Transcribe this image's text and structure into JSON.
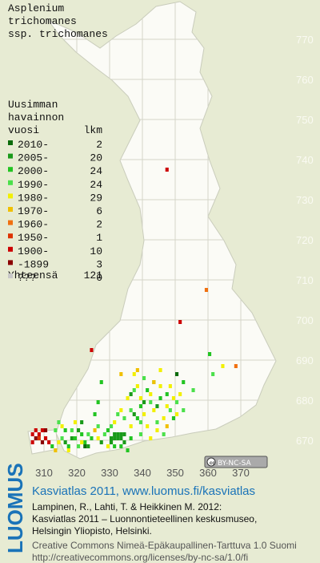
{
  "title": [
    "Asplenium",
    "trichomanes",
    "ssp. trichomanes"
  ],
  "legend": {
    "heading": [
      "Uusimman",
      "havainnon"
    ],
    "col_period": "vuosi",
    "col_count": "lkm",
    "rows": [
      {
        "label": "2010-",
        "count": 2,
        "color": "#0b6b0b",
        "squares": [
          [
            350,
            686
          ],
          [
            322,
            668
          ]
        ]
      },
      {
        "label": "2005-",
        "count": 20,
        "color": "#1a9a1a",
        "squares": [
          [
            330,
            670
          ],
          [
            331,
            670
          ],
          [
            332,
            670
          ],
          [
            333,
            670
          ],
          [
            332,
            671
          ],
          [
            333,
            671
          ],
          [
            334,
            671
          ],
          [
            331,
            671
          ],
          [
            330,
            669
          ],
          [
            334,
            669
          ],
          [
            320,
            672
          ],
          [
            321,
            674
          ],
          [
            316,
            669
          ],
          [
            318,
            670
          ],
          [
            340,
            679
          ],
          [
            337,
            676
          ],
          [
            336,
            681
          ],
          [
            344,
            678
          ],
          [
            327,
            669
          ],
          [
            323,
            668
          ]
        ]
      },
      {
        "label": "2000-",
        "count": 24,
        "color": "#22c422",
        "squares": [
          [
            316,
            672
          ],
          [
            317,
            668
          ],
          [
            319,
            670
          ],
          [
            321,
            671
          ],
          [
            322,
            669
          ],
          [
            324,
            670
          ],
          [
            325,
            676
          ],
          [
            326,
            679
          ],
          [
            327,
            684
          ],
          [
            329,
            672
          ],
          [
            331,
            668
          ],
          [
            333,
            668
          ],
          [
            335,
            667
          ],
          [
            336,
            670
          ],
          [
            338,
            675
          ],
          [
            339,
            678
          ],
          [
            341,
            682
          ],
          [
            343,
            684
          ],
          [
            345,
            680
          ],
          [
            347,
            681
          ],
          [
            349,
            675
          ],
          [
            352,
            684
          ],
          [
            360,
            691
          ],
          [
            312,
            668
          ]
        ]
      },
      {
        "label": "1990-",
        "count": 24,
        "color": "#4be04b",
        "squares": [
          [
            313,
            672
          ],
          [
            314,
            674
          ],
          [
            315,
            670
          ],
          [
            318,
            672
          ],
          [
            320,
            668
          ],
          [
            323,
            671
          ],
          [
            326,
            673
          ],
          [
            328,
            671
          ],
          [
            330,
            673
          ],
          [
            332,
            676
          ],
          [
            334,
            675
          ],
          [
            336,
            677
          ],
          [
            337,
            682
          ],
          [
            339,
            674
          ],
          [
            340,
            685
          ],
          [
            342,
            679
          ],
          [
            344,
            674
          ],
          [
            346,
            671
          ],
          [
            348,
            677
          ],
          [
            350,
            679
          ],
          [
            352,
            677
          ],
          [
            355,
            682
          ],
          [
            361,
            686
          ],
          [
            339,
            671
          ]
        ]
      },
      {
        "label": "1980-",
        "count": 29,
        "color": "#f2f000",
        "squares": [
          [
            314,
            669
          ],
          [
            315,
            673
          ],
          [
            317,
            667
          ],
          [
            319,
            674
          ],
          [
            321,
            669
          ],
          [
            326,
            670
          ],
          [
            329,
            668
          ],
          [
            331,
            674
          ],
          [
            333,
            677
          ],
          [
            335,
            680
          ],
          [
            337,
            686
          ],
          [
            338,
            683
          ],
          [
            339,
            680
          ],
          [
            340,
            676
          ],
          [
            341,
            673
          ],
          [
            342,
            681
          ],
          [
            343,
            677
          ],
          [
            344,
            672
          ],
          [
            345,
            683
          ],
          [
            346,
            675
          ],
          [
            347,
            678
          ],
          [
            348,
            683
          ],
          [
            349,
            680
          ],
          [
            350,
            676
          ],
          [
            351,
            681
          ],
          [
            345,
            687
          ],
          [
            364,
            688
          ],
          [
            336,
            673
          ],
          [
            342,
            670
          ]
        ]
      },
      {
        "label": "1970-",
        "count": 6,
        "color": "#f0c000",
        "squares": [
          [
            313,
            667
          ],
          [
            333,
            686
          ],
          [
            343,
            684
          ],
          [
            347,
            673
          ],
          [
            338,
            687
          ],
          [
            325,
            672
          ]
        ]
      },
      {
        "label": "1960-",
        "count": 2,
        "color": "#f07010",
        "squares": [
          [
            359,
            707
          ],
          [
            368,
            688
          ]
        ]
      },
      {
        "label": "1950-",
        "count": 1,
        "color": "#dd3300",
        "squares": [
          [
            308,
            670
          ]
        ]
      },
      {
        "label": "1900-",
        "count": 10,
        "color": "#cc0000",
        "squares": [
          [
            306,
            671
          ],
          [
            307,
            672
          ],
          [
            308,
            671
          ],
          [
            309,
            672
          ],
          [
            310,
            670
          ],
          [
            311,
            669
          ],
          [
            324,
            692
          ],
          [
            351,
            699
          ],
          [
            347,
            737
          ],
          [
            306,
            669
          ]
        ]
      },
      {
        "label": "-1899",
        "count": 3,
        "color": "#8b0000",
        "squares": [
          [
            307,
            670
          ],
          [
            309,
            669
          ],
          [
            310,
            672
          ]
        ]
      },
      {
        "label": "???",
        "count": 0,
        "color": "#c8c8c8",
        "squares": []
      }
    ],
    "total_label": "Yhteensä",
    "total": 121
  },
  "grid": {
    "x_labels": [
      310,
      320,
      330,
      340,
      350,
      360,
      370
    ],
    "y_labels": [
      770,
      760,
      750,
      740,
      730,
      720,
      710,
      700,
      690,
      680,
      670
    ]
  },
  "badge": "BY-NC-SA",
  "footer": {
    "logo": "LUOMUS",
    "title": "Kasviatlas 2011, www.luomus.fi/kasviatlas",
    "citation": [
      "Lampinen, R., Lahti, T. & Heikkinen M. 2012:",
      "Kasviatlas 2011 – Luonnontieteellinen keskusmuseo,",
      "Helsingin Yliopisto, Helsinki."
    ],
    "license": [
      "Creative Commons Nimeä-Epäkaupallinen-Tarttuva 1.0 Suomi",
      "http://creativecommons.org/licenses/by-nc-sa/1.0/fi"
    ]
  }
}
